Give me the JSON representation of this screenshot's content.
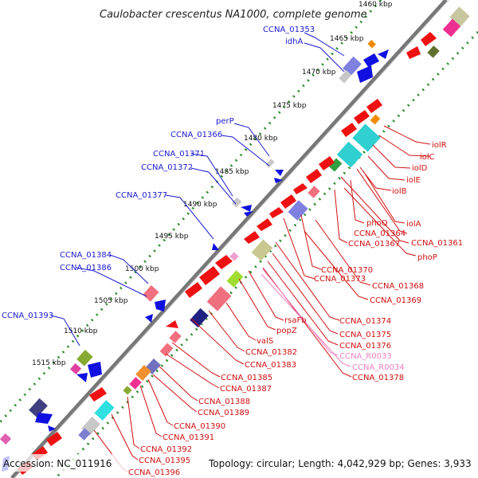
{
  "title": "Caulobacter crescentus NA1000, complete genome",
  "accession": "Accession: NC_011916",
  "topology": "Topology: circular; Length: 4,042,929 bp; Genes: 3,933",
  "kbp_marks": [
    "1460 kbp",
    "1465 kbp",
    "1470 kbp",
    "1475 kbp",
    "1480 kbp",
    "1485 kbp",
    "1490 kbp",
    "1495 kbp",
    "1500 kbp",
    "1505 kbp",
    "1510 kbp",
    "1515 kbp"
  ],
  "forward_labels": [
    "CCNA_01353",
    "idhA",
    "perP",
    "CCNA_01366",
    "CCNA_01371",
    "CCNA_01372",
    "CCNA_01377",
    "CCNA_01384",
    "CCNA_01386",
    "CCNA_01393"
  ],
  "reverse_labels": [
    "iolR",
    "iolC",
    "iolD",
    "iolE",
    "iolB",
    "iolA",
    "phoQ",
    "CCNA_01364",
    "CCNA_01361",
    "CCNA_01367",
    "phoP",
    "CCNA_01370",
    "CCNA_01373",
    "CCNA_01368",
    "CCNA_01369",
    "CCNA_01374",
    "CCNA_01375",
    "CCNA_01376",
    "rsaFb",
    "popZ",
    "valS",
    "CCNA_01382",
    "CCNA_01383",
    "CCNA_01385",
    "CCNA_01387",
    "CCNA_01388",
    "CCNA_01389",
    "CCNA_01390",
    "CCNA_01391",
    "CCNA_01392",
    "CCNA_01395",
    "CCNA_01396",
    "CCNA_01378"
  ],
  "rna_labels": [
    "CCNA_R0033",
    "CCNA_R0034"
  ],
  "colors": {
    "forward": "#1a1ad0",
    "reverse": "#d01010",
    "rna": "#f080c0",
    "backbone": "#777777",
    "dots": "#2a8a2a"
  }
}
